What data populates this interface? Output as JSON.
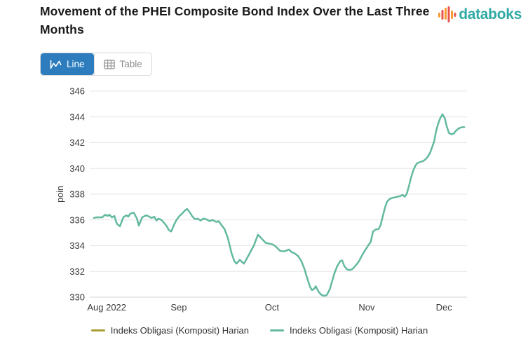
{
  "header": {
    "title": "Movement of the PHEI Composite Bond Index Over the Last Three Months",
    "brand": {
      "name": "databoks",
      "text_color": "#2fa9a4",
      "icon_bar_colors": [
        "#f59b2f",
        "#e8544d"
      ]
    }
  },
  "toolbar": {
    "line_label": "Line",
    "table_label": "Table",
    "active_bg_color": "#2d7dbe",
    "inactive_text_color": "#8c8c8c"
  },
  "chart_data": {
    "type": "line",
    "ylabel": "poin",
    "ylim": [
      330,
      346
    ],
    "yticks": [
      330,
      332,
      334,
      336,
      338,
      340,
      342,
      344,
      346
    ],
    "xticks": [
      {
        "label": "Aug 2022",
        "t": 0.045
      },
      {
        "label": "Sep",
        "t": 0.236
      },
      {
        "label": "Oct",
        "t": 0.483
      },
      {
        "label": "Nov",
        "t": 0.734
      },
      {
        "label": "Dec",
        "t": 0.939
      }
    ],
    "grid": true,
    "gridline_color": "#e7e7e7",
    "axis_line_color": "#d6d6d6",
    "tick_text_color": "#3b3b3b",
    "legend_position": "bottom",
    "series": [
      {
        "name": "Indeks Obligasi (Komposit) Harian",
        "color": "#ac9e35",
        "visible_in_plot": false,
        "points": []
      },
      {
        "name": "Indeks Obligasi (Komposit) Harian",
        "color": "#63b9a0",
        "visible_in_plot": true,
        "points": [
          [
            0.011,
            336.15
          ],
          [
            0.019,
            336.2
          ],
          [
            0.026,
            336.2
          ],
          [
            0.033,
            336.2
          ],
          [
            0.041,
            336.4
          ],
          [
            0.047,
            336.3
          ],
          [
            0.052,
            336.4
          ],
          [
            0.059,
            336.2
          ],
          [
            0.065,
            336.3
          ],
          [
            0.072,
            335.7
          ],
          [
            0.08,
            335.5
          ],
          [
            0.089,
            336.2
          ],
          [
            0.097,
            336.35
          ],
          [
            0.102,
            336.25
          ],
          [
            0.108,
            336.5
          ],
          [
            0.117,
            336.55
          ],
          [
            0.125,
            336.1
          ],
          [
            0.13,
            335.55
          ],
          [
            0.139,
            336.2
          ],
          [
            0.149,
            336.35
          ],
          [
            0.154,
            336.3
          ],
          [
            0.164,
            336.15
          ],
          [
            0.171,
            336.25
          ],
          [
            0.177,
            335.95
          ],
          [
            0.182,
            336.1
          ],
          [
            0.19,
            336.0
          ],
          [
            0.199,
            335.7
          ],
          [
            0.204,
            335.5
          ],
          [
            0.21,
            335.2
          ],
          [
            0.216,
            335.1
          ],
          [
            0.223,
            335.6
          ],
          [
            0.23,
            336.0
          ],
          [
            0.238,
            336.3
          ],
          [
            0.245,
            336.5
          ],
          [
            0.253,
            336.75
          ],
          [
            0.258,
            336.85
          ],
          [
            0.266,
            336.55
          ],
          [
            0.271,
            336.3
          ],
          [
            0.279,
            336.05
          ],
          [
            0.286,
            336.1
          ],
          [
            0.294,
            335.95
          ],
          [
            0.301,
            336.1
          ],
          [
            0.309,
            336.05
          ],
          [
            0.318,
            335.9
          ],
          [
            0.325,
            336.0
          ],
          [
            0.335,
            335.85
          ],
          [
            0.342,
            335.9
          ],
          [
            0.349,
            335.6
          ],
          [
            0.357,
            335.3
          ],
          [
            0.366,
            334.6
          ],
          [
            0.376,
            333.4
          ],
          [
            0.383,
            332.8
          ],
          [
            0.389,
            332.6
          ],
          [
            0.398,
            332.9
          ],
          [
            0.403,
            332.75
          ],
          [
            0.409,
            332.6
          ],
          [
            0.422,
            333.3
          ],
          [
            0.435,
            334.0
          ],
          [
            0.446,
            334.85
          ],
          [
            0.457,
            334.5
          ],
          [
            0.467,
            334.2
          ],
          [
            0.476,
            334.15
          ],
          [
            0.485,
            334.1
          ],
          [
            0.494,
            333.9
          ],
          [
            0.504,
            333.6
          ],
          [
            0.513,
            333.55
          ],
          [
            0.52,
            333.6
          ],
          [
            0.528,
            333.7
          ],
          [
            0.535,
            333.5
          ],
          [
            0.543,
            333.4
          ],
          [
            0.552,
            333.2
          ],
          [
            0.561,
            332.8
          ],
          [
            0.569,
            332.2
          ],
          [
            0.576,
            331.5
          ],
          [
            0.584,
            330.8
          ],
          [
            0.589,
            330.55
          ],
          [
            0.595,
            330.65
          ],
          [
            0.599,
            330.85
          ],
          [
            0.606,
            330.45
          ],
          [
            0.613,
            330.2
          ],
          [
            0.621,
            330.1
          ],
          [
            0.628,
            330.15
          ],
          [
            0.636,
            330.6
          ],
          [
            0.641,
            331.1
          ],
          [
            0.649,
            331.9
          ],
          [
            0.656,
            332.4
          ],
          [
            0.664,
            332.8
          ],
          [
            0.669,
            332.85
          ],
          [
            0.675,
            332.4
          ],
          [
            0.682,
            332.15
          ],
          [
            0.69,
            332.1
          ],
          [
            0.697,
            332.2
          ],
          [
            0.706,
            332.5
          ],
          [
            0.714,
            332.8
          ],
          [
            0.721,
            333.2
          ],
          [
            0.729,
            333.6
          ],
          [
            0.738,
            334.0
          ],
          [
            0.745,
            334.3
          ],
          [
            0.751,
            335.1
          ],
          [
            0.758,
            335.25
          ],
          [
            0.766,
            335.3
          ],
          [
            0.771,
            335.6
          ],
          [
            0.777,
            336.3
          ],
          [
            0.783,
            337.0
          ],
          [
            0.788,
            337.4
          ],
          [
            0.794,
            337.6
          ],
          [
            0.801,
            337.7
          ],
          [
            0.809,
            337.75
          ],
          [
            0.816,
            337.8
          ],
          [
            0.823,
            337.85
          ],
          [
            0.829,
            337.95
          ],
          [
            0.835,
            337.8
          ],
          [
            0.84,
            338.0
          ],
          [
            0.846,
            338.6
          ],
          [
            0.851,
            339.2
          ],
          [
            0.857,
            339.8
          ],
          [
            0.863,
            340.2
          ],
          [
            0.868,
            340.4
          ],
          [
            0.876,
            340.5
          ],
          [
            0.883,
            340.55
          ],
          [
            0.89,
            340.7
          ],
          [
            0.896,
            340.9
          ],
          [
            0.902,
            341.2
          ],
          [
            0.907,
            341.6
          ],
          [
            0.913,
            342.1
          ],
          [
            0.918,
            342.9
          ],
          [
            0.924,
            343.5
          ],
          [
            0.929,
            343.9
          ],
          [
            0.935,
            344.2
          ],
          [
            0.941,
            343.9
          ],
          [
            0.946,
            343.3
          ],
          [
            0.952,
            342.75
          ],
          [
            0.959,
            342.65
          ],
          [
            0.965,
            342.7
          ],
          [
            0.97,
            342.9
          ],
          [
            0.976,
            343.05
          ],
          [
            0.981,
            343.15
          ],
          [
            0.987,
            343.2
          ],
          [
            0.993,
            343.2
          ]
        ]
      }
    ]
  }
}
